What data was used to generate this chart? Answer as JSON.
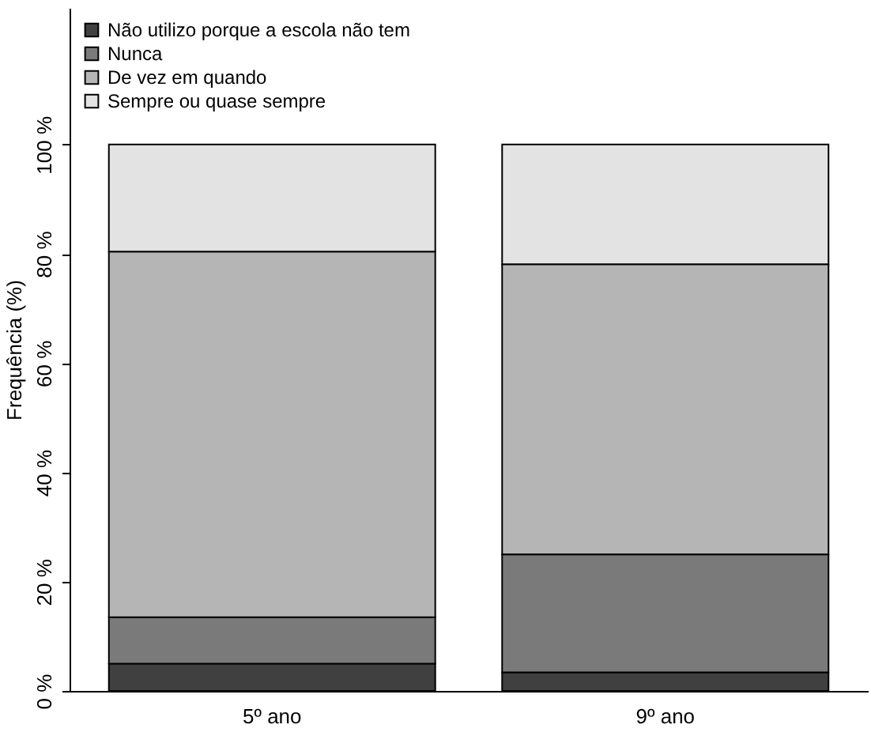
{
  "chart_data": {
    "type": "bar",
    "stacked": true,
    "ylabel": "Frequência (%)",
    "categories": [
      "5º ano",
      "9º ano"
    ],
    "series": [
      {
        "name": "Não utilizo porque a escola não tem",
        "color": "#404040",
        "values": [
          5.0,
          3.4
        ]
      },
      {
        "name": "Nunca",
        "color": "#7a7a7a",
        "values": [
          8.5,
          21.6
        ]
      },
      {
        "name": "De vez em quando",
        "color": "#b5b5b5",
        "values": [
          66.9,
          53.1
        ]
      },
      {
        "name": "Sempre ou quase sempre",
        "color": "#e3e3e3",
        "values": [
          19.6,
          21.9
        ]
      }
    ],
    "ylim": [
      0,
      125
    ],
    "yticks": [
      {
        "value": 0,
        "label": "0 %"
      },
      {
        "value": 20,
        "label": "20 %"
      },
      {
        "value": 40,
        "label": "40 %"
      },
      {
        "value": 60,
        "label": "60 %"
      },
      {
        "value": 80,
        "label": "80 %"
      },
      {
        "value": 100,
        "label": "100 %"
      }
    ],
    "legend": "top left"
  }
}
